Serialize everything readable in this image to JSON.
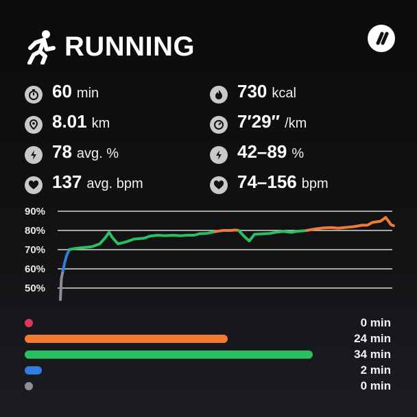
{
  "header": {
    "title": "RUNNING",
    "icon": "running-person-icon",
    "brand_icon": "double-slash-logo-icon"
  },
  "stats": [
    {
      "icon": "stopwatch-icon",
      "value": "60",
      "unit": "min"
    },
    {
      "icon": "flame-icon",
      "value": "730",
      "unit": "kcal"
    },
    {
      "icon": "location-pin-icon",
      "value": "8.01",
      "unit": "km"
    },
    {
      "icon": "speedometer-icon",
      "value": "7′29″",
      "unit": "/km"
    },
    {
      "icon": "lightning-icon",
      "value": "78",
      "unit": "avg. %"
    },
    {
      "icon": "lightning-icon",
      "value": "42–89",
      "unit": "%"
    },
    {
      "icon": "heart-icon",
      "value": "137",
      "unit": "avg. bpm"
    },
    {
      "icon": "heart-icon",
      "value": "74–156",
      "unit": "bpm"
    }
  ],
  "chart_data": {
    "type": "line",
    "ylabel": "",
    "yticks": [
      "90%",
      "80%",
      "70%",
      "60%",
      "50%"
    ],
    "ylim": [
      45,
      92
    ],
    "xlim": [
      0,
      60
    ],
    "grid": true,
    "series_segments": [
      {
        "zone": "gray",
        "color": "#8e8e93",
        "points": [
          [
            0,
            44
          ],
          [
            0.2,
            55
          ],
          [
            0.5,
            59
          ]
        ]
      },
      {
        "zone": "blue",
        "color": "#2f7fe0",
        "points": [
          [
            0.5,
            59
          ],
          [
            0.8,
            63
          ],
          [
            1.2,
            67
          ],
          [
            1.7,
            70
          ]
        ]
      },
      {
        "zone": "green",
        "color": "#2bbf63",
        "points": [
          [
            1.7,
            70
          ],
          [
            2.5,
            70.5
          ],
          [
            4,
            71
          ],
          [
            6,
            71.5
          ],
          [
            7.5,
            73
          ],
          [
            8.5,
            76
          ],
          [
            9.3,
            79
          ],
          [
            10,
            76
          ],
          [
            11,
            73
          ],
          [
            12.5,
            74
          ],
          [
            14,
            75.5
          ],
          [
            16,
            76
          ],
          [
            17,
            77
          ],
          [
            18.5,
            77.5
          ],
          [
            20,
            77.3
          ],
          [
            21.5,
            77.5
          ],
          [
            23,
            77.2
          ],
          [
            24,
            77.5
          ],
          [
            25.5,
            77.5
          ],
          [
            26.5,
            78.3
          ],
          [
            28,
            78.5
          ],
          [
            29.5,
            79.4
          ]
        ]
      },
      {
        "zone": "orange",
        "color": "#f07b35",
        "points": [
          [
            29.5,
            79.4
          ],
          [
            31,
            80
          ],
          [
            32.5,
            80
          ],
          [
            33.3,
            80.2
          ],
          [
            34,
            80
          ]
        ]
      },
      {
        "zone": "green",
        "color": "#2bbf63",
        "points": [
          [
            34,
            80
          ],
          [
            35,
            77
          ],
          [
            36,
            74.5
          ],
          [
            37,
            78
          ],
          [
            38.5,
            78.2
          ],
          [
            40,
            78.5
          ],
          [
            41,
            79
          ],
          [
            42.5,
            79.5
          ],
          [
            44,
            79
          ],
          [
            45,
            79.5
          ],
          [
            46,
            79.7
          ],
          [
            47,
            80
          ]
        ]
      },
      {
        "zone": "orange",
        "color": "#f07b35",
        "points": [
          [
            47,
            80
          ],
          [
            48.5,
            80.8
          ],
          [
            50,
            81.3
          ],
          [
            51.5,
            81.5
          ],
          [
            53,
            81.2
          ],
          [
            54.5,
            81.6
          ],
          [
            56,
            82
          ],
          [
            57.5,
            82.7
          ],
          [
            58.5,
            82.7
          ],
          [
            59.5,
            84.2
          ],
          [
            60.3,
            84.5
          ],
          [
            61,
            84.8
          ],
          [
            62,
            86.8
          ],
          [
            62.5,
            85
          ],
          [
            63,
            83
          ],
          [
            63.5,
            82.5
          ]
        ]
      }
    ]
  },
  "zones": [
    {
      "color": "#e0355a",
      "minutes": 0,
      "label": "0 min"
    },
    {
      "color": "#f07b35",
      "minutes": 24,
      "label": "24 min"
    },
    {
      "color": "#2bbf63",
      "minutes": 34,
      "label": "34 min"
    },
    {
      "color": "#2f7fe0",
      "minutes": 2,
      "label": "2 min"
    },
    {
      "color": "#8e8e93",
      "minutes": 0,
      "label": "0 min"
    }
  ]
}
